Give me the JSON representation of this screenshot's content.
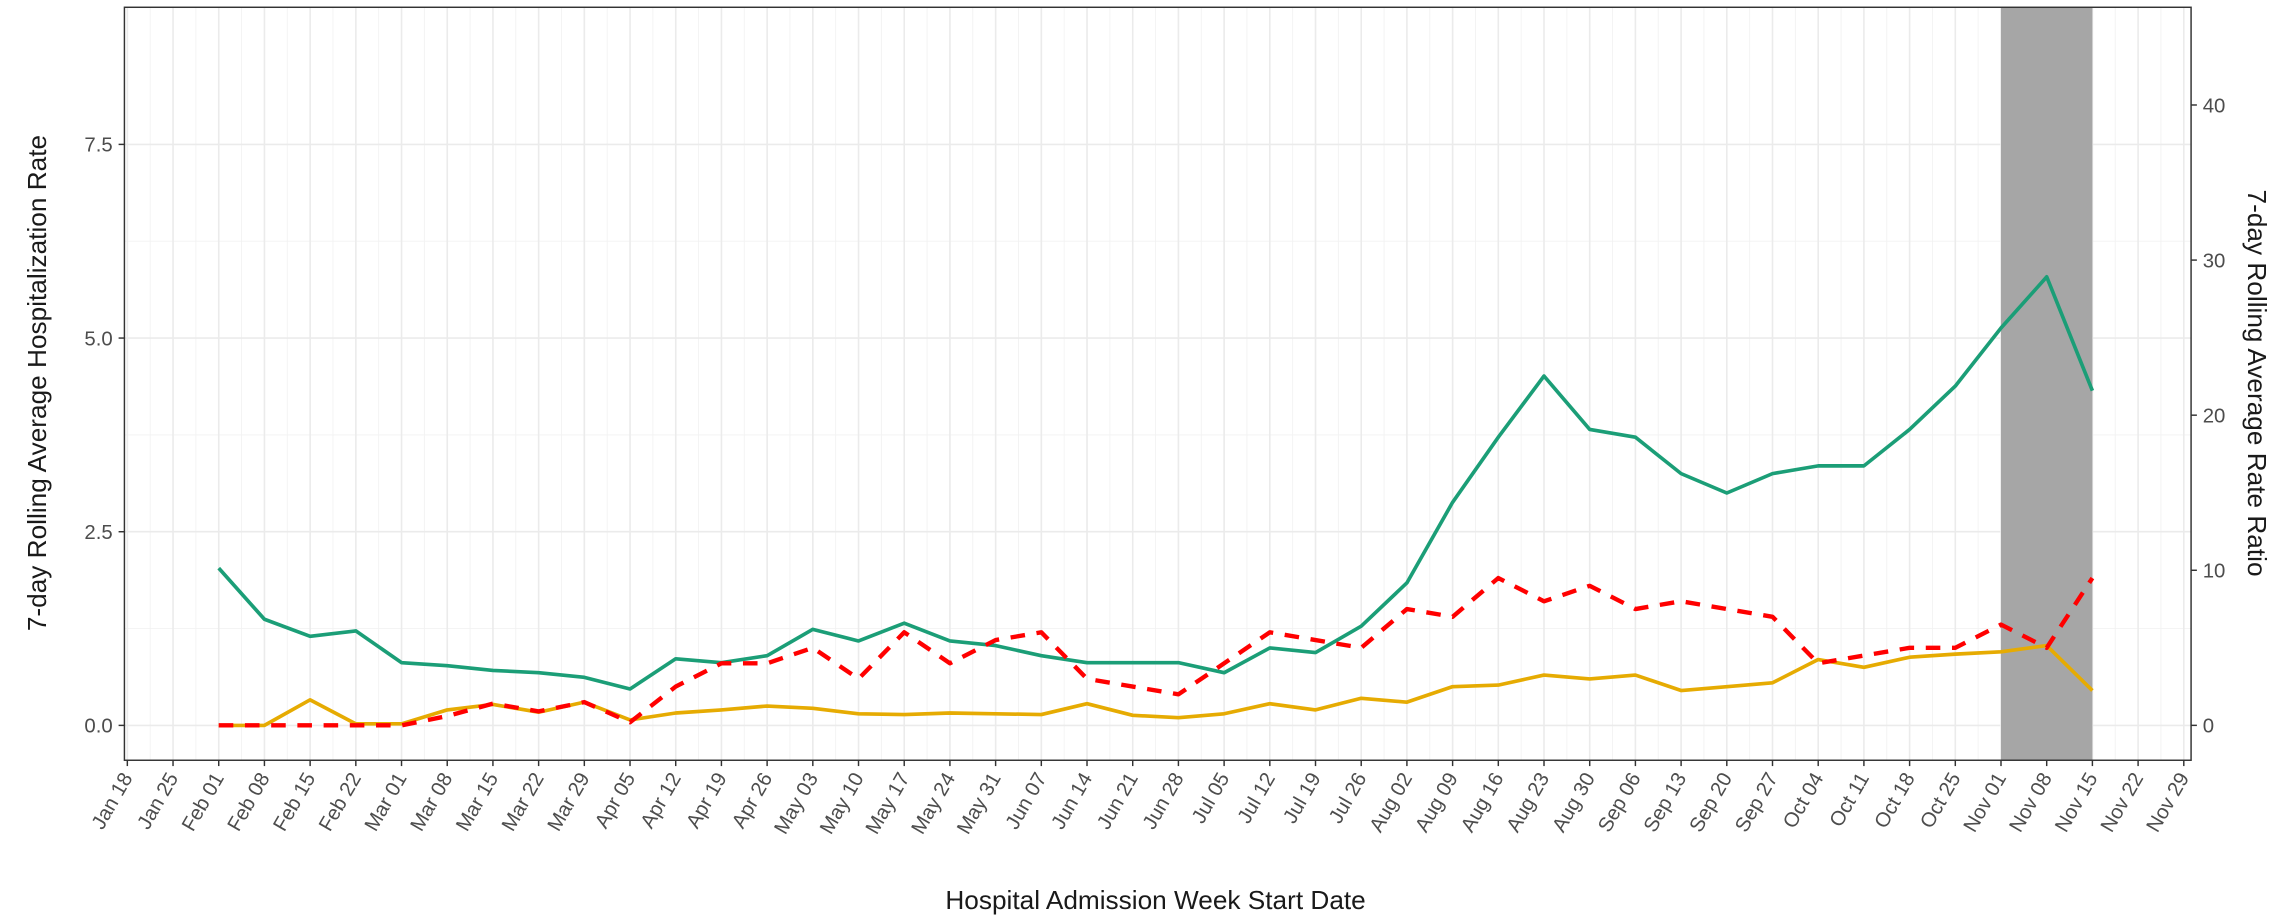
{
  "chart_data": {
    "type": "line",
    "x_label": "Hospital Admission Week Start Date",
    "y_label": "7-day Rolling Average Hospitalization Rate",
    "y2_label": "7-day Rolling Average Rate Ratio",
    "categories": [
      "Jan 18",
      "Jan 25",
      "Feb 01",
      "Feb 08",
      "Feb 15",
      "Feb 22",
      "Mar 01",
      "Mar 08",
      "Mar 15",
      "Mar 22",
      "Mar 29",
      "Apr 05",
      "Apr 12",
      "Apr 19",
      "Apr 26",
      "May 03",
      "May 10",
      "May 17",
      "May 24",
      "May 31",
      "Jun 07",
      "Jun 14",
      "Jun 21",
      "Jun 28",
      "Jul 05",
      "Jul 12",
      "Jul 19",
      "Jul 26",
      "Aug 02",
      "Aug 09",
      "Aug 16",
      "Aug 23",
      "Aug 30",
      "Sep 06",
      "Sep 13",
      "Sep 20",
      "Sep 27",
      "Oct 04",
      "Oct 11",
      "Oct 18",
      "Oct 25",
      "Nov 01",
      "Nov 08",
      "Nov 15",
      "Nov 22",
      "Nov 29"
    ],
    "series": [
      {
        "color": "#1b9e77",
        "axis": "y",
        "values": [
          null,
          null,
          2.03,
          1.37,
          1.15,
          1.22,
          0.81,
          0.77,
          0.71,
          0.68,
          0.62,
          0.47,
          0.86,
          0.81,
          0.9,
          1.24,
          1.09,
          1.32,
          1.09,
          1.03,
          0.9,
          0.81,
          0.81,
          0.81,
          0.68,
          1.0,
          0.94,
          1.28,
          1.84,
          2.88,
          3.72,
          4.51,
          3.82,
          3.72,
          3.25,
          3.0,
          3.25,
          3.35,
          3.35,
          3.82,
          4.38,
          5.13,
          5.79,
          4.32,
          null,
          null
        ]
      },
      {
        "color": "#e6ab02",
        "axis": "y",
        "values": [
          null,
          null,
          0,
          0,
          0.33,
          0.02,
          0.02,
          0.2,
          0.27,
          0.17,
          0.3,
          0.07,
          0.16,
          0.2,
          0.25,
          0.22,
          0.15,
          0.14,
          0.16,
          0.15,
          0.14,
          0.28,
          0.13,
          0.1,
          0.15,
          0.28,
          0.2,
          0.35,
          0.3,
          0.5,
          0.52,
          0.65,
          0.6,
          0.65,
          0.45,
          0.5,
          0.55,
          0.85,
          0.75,
          0.88,
          0.92,
          0.95,
          1.03,
          0.45,
          null,
          null
        ]
      },
      {
        "color": "#ff0000",
        "axis": "y2",
        "dashed": true,
        "values": [
          null,
          null,
          0,
          0,
          0,
          0,
          0,
          0.6,
          1.4,
          0.9,
          1.5,
          0.2,
          2.5,
          4,
          4,
          5,
          3,
          6,
          4,
          5.5,
          6,
          3,
          2.5,
          2,
          4,
          6,
          5.5,
          5,
          7.5,
          7,
          9.5,
          8,
          9,
          7.5,
          8,
          7.5,
          7,
          4,
          4.5,
          5,
          5,
          6.5,
          5,
          9.5,
          null,
          null
        ]
      }
    ],
    "highlight": {
      "from": "Nov 01",
      "to": "Nov 15",
      "color": "#a6a6a6"
    },
    "ylim": [
      -0.45,
      9.27
    ],
    "yticks": [
      {
        "value": 0,
        "label": "0.0"
      },
      2.5,
      {
        "value": 5,
        "label": "5.0"
      },
      7.5
    ],
    "y2lim": [
      -2.25,
      46.3
    ],
    "y2ticks": [
      0,
      10,
      20,
      30,
      40
    ],
    "grid": true
  }
}
